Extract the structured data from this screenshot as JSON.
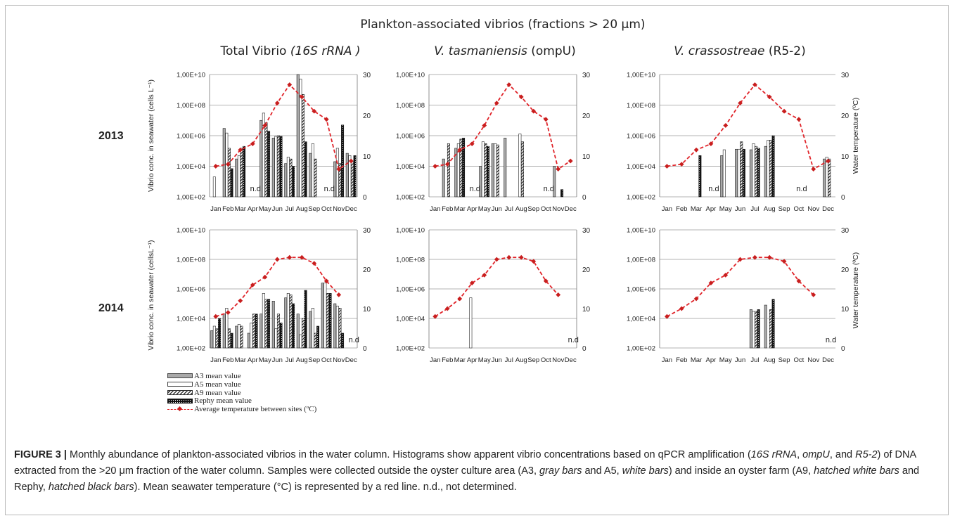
{
  "figure": {
    "supertitle": "Plankton-associated vibrios (fractions > 20 µm)",
    "column_titles": [
      {
        "plain": "Total Vibrio ",
        "italic": "(16S rRNA )"
      },
      {
        "plain": "",
        "italic": "V. tasmaniensis",
        "plain2": " (ompU)"
      },
      {
        "plain": "",
        "italic": "V. crassostreae",
        "plain2": " (R5-2)"
      }
    ],
    "row_labels": [
      "2013",
      "2014"
    ],
    "left_axis_label_2013": "Vibrio conc. in seawater (cells L⁻¹)",
    "left_axis_label_2014": "Vibrio conc. in seawater (cellsL⁻¹)",
    "right_axis_label": "Water temperature (ºC)"
  },
  "legend": {
    "a3": "A3 mean value",
    "a5": "A5 mean value",
    "a9": "A9 mean value",
    "rephy": "Rephy mean value",
    "temp": "Average temperature between sites (ºC)"
  },
  "colors": {
    "a3": "#a9a9a9",
    "a5": "#ffffff",
    "rephy": "#111111",
    "temperature": "#e0242a",
    "grid": "#9a9a9a"
  },
  "caption": {
    "label": "FIGURE 3 |",
    "p1": " Monthly abundance of plankton-associated vibrios in the water column. Histograms show apparent vibrio concentrations based on qPCR amplification (",
    "i1": "16S rRNA",
    "p2": ", ",
    "i2": "ompU",
    "p3": ", and ",
    "i3": "R5-2",
    "p4": ") of DNA extracted from the >20 μm fraction of the water column. Samples were collected outside the oyster culture area (A3, ",
    "i4": "gray bars",
    "p5": " and A5, ",
    "i5": "white bars",
    "p6": ") and inside an oyster farm (A9, ",
    "i6": "hatched white bars",
    "p7": " and Rephy, ",
    "i7": "hatched black bars",
    "p8": "). Mean seawater temperature (°C) is represented by a red line. n.d., not determined."
  },
  "chart_data": [
    {
      "type": "bar",
      "name": "Total Vibrio 2013",
      "categories": [
        "Jan",
        "Feb",
        "Mar",
        "Apr",
        "May",
        "Jun",
        "Jul",
        "Aug",
        "Sep",
        "Oct",
        "Nov",
        "Dec"
      ],
      "y_ticks": [
        "1,00E+02",
        "1,00E+04",
        "1,00E+06",
        "1,00E+08",
        "1,00E+10"
      ],
      "y2_ticks": [
        "0",
        "10",
        "20",
        "30"
      ],
      "log_scale": true,
      "ylim": [
        100,
        10000000000
      ],
      "y2lim": [
        0,
        30
      ],
      "series": [
        {
          "name": "A3 mean value",
          "values": [
            null,
            3000000,
            30000,
            null,
            10000000,
            700000,
            15000,
            10000000000,
            70000,
            null,
            20000,
            70000
          ]
        },
        {
          "name": "A5 mean value",
          "values": [
            2000,
            1500000,
            50000,
            null,
            30000000,
            900000,
            40000,
            5000000000,
            300000,
            null,
            150000,
            50000
          ]
        },
        {
          "name": "A9 mean value",
          "values": [
            null,
            150000,
            150000,
            null,
            7000000,
            1000000,
            30000,
            500000000,
            30000,
            null,
            15000,
            20000
          ]
        },
        {
          "name": "Rephy mean value",
          "values": [
            null,
            7000,
            200000,
            null,
            2000000,
            900000,
            10000,
            400000,
            null,
            null,
            5000000,
            50000
          ]
        }
      ],
      "temperature": [
        7.5,
        8,
        11.5,
        13,
        17.5,
        23,
        27.5,
        24.5,
        21,
        19,
        6.8,
        8.8
      ],
      "nd_labels": [
        {
          "month": "Apr",
          "text": "n.d"
        },
        {
          "month": "Oct",
          "text": "n.d"
        }
      ]
    },
    {
      "type": "bar",
      "name": "V. tasmaniensis 2013",
      "categories": [
        "Jan",
        "Feb",
        "Mar",
        "Apr",
        "May",
        "Jun",
        "Jul",
        "Aug",
        "Sep",
        "Oct",
        "Nov",
        "Dec"
      ],
      "y_ticks": [
        "1,00E+02",
        "1,00E+04",
        "1,00E+06",
        "1,00E+08",
        "1,00E+10"
      ],
      "y2_ticks": [
        "0",
        "10",
        "20",
        "30"
      ],
      "log_scale": true,
      "ylim": [
        100,
        10000000000
      ],
      "y2lim": [
        0,
        30
      ],
      "series": [
        {
          "name": "A3 mean value",
          "values": [
            null,
            30000,
            150000,
            null,
            10000,
            300000,
            700000,
            null,
            null,
            null,
            10000,
            null
          ]
        },
        {
          "name": "A5 mean value",
          "values": [
            null,
            null,
            300000,
            null,
            400000,
            300000,
            null,
            1300000,
            null,
            null,
            null,
            null
          ]
        },
        {
          "name": "A9 mean value",
          "values": [
            null,
            300000,
            600000,
            null,
            300000,
            250000,
            null,
            400000,
            null,
            null,
            null,
            null
          ]
        },
        {
          "name": "Rephy mean value",
          "values": [
            null,
            null,
            700000,
            null,
            200000,
            null,
            null,
            null,
            null,
            null,
            300,
            null
          ]
        }
      ],
      "temperature": [
        7.5,
        8,
        11.5,
        13,
        17.5,
        23,
        27.5,
        24.5,
        21,
        19,
        6.8,
        8.8
      ],
      "nd_labels": [
        {
          "month": "Apr",
          "text": "n.d"
        },
        {
          "month": "Oct",
          "text": "n.d"
        }
      ]
    },
    {
      "type": "bar",
      "name": "V. crassostreae 2013",
      "categories": [
        "Jan",
        "Feb",
        "Mar",
        "Apr",
        "May",
        "Jun",
        "Jul",
        "Aug",
        "Sep",
        "Oct",
        "Nov",
        "Dec"
      ],
      "y_ticks": [
        "1,00E+02",
        "1,00E+04",
        "1,00E+06",
        "1,00E+08",
        "1,00E+10"
      ],
      "y2_ticks": [
        "0",
        "10",
        "20",
        "30"
      ],
      "log_scale": true,
      "ylim": [
        100,
        10000000000
      ],
      "y2lim": [
        0,
        30
      ],
      "series": [
        {
          "name": "A3 mean value",
          "values": [
            null,
            null,
            null,
            null,
            50000,
            130000,
            120000,
            200000,
            null,
            null,
            null,
            30000
          ]
        },
        {
          "name": "A5 mean value",
          "values": [
            null,
            null,
            null,
            null,
            120000,
            130000,
            300000,
            500000,
            null,
            null,
            null,
            40000
          ]
        },
        {
          "name": "A9 mean value",
          "values": [
            null,
            null,
            null,
            null,
            null,
            400000,
            200000,
            500000,
            null,
            null,
            null,
            30000
          ]
        },
        {
          "name": "Rephy mean value",
          "values": [
            null,
            null,
            50000,
            null,
            null,
            130000,
            150000,
            1000000,
            null,
            null,
            null,
            null
          ]
        }
      ],
      "temperature": [
        7.5,
        8,
        11.5,
        13,
        17.5,
        23,
        27.5,
        24.5,
        21,
        19,
        6.8,
        8.8
      ],
      "nd_labels": [
        {
          "month": "Apr",
          "text": "n.d"
        },
        {
          "month": "Oct",
          "text": "n.d"
        }
      ]
    },
    {
      "type": "bar",
      "name": "Total Vibrio 2014",
      "categories": [
        "Jan",
        "Feb",
        "Mar",
        "Apr",
        "May",
        "Jun",
        "Jul",
        "Aug",
        "Sep",
        "Oct",
        "Nov",
        "Dec"
      ],
      "y_ticks": [
        "1,00E+02",
        "1,00E+04",
        "1,00E+06",
        "1,00E+08",
        "1,00E+10"
      ],
      "y2_ticks": [
        "0",
        "10",
        "20",
        "30"
      ],
      "log_scale": true,
      "ylim": [
        100,
        10000000000
      ],
      "y2lim": [
        0,
        30
      ],
      "series": [
        {
          "name": "A3 mean value",
          "values": [
            1500,
            20000,
            3000,
            1000,
            20000,
            150000,
            250000,
            20000,
            30000,
            2500000,
            100000,
            null
          ]
        },
        {
          "name": "A5 mean value",
          "values": [
            3000,
            50000,
            4000,
            5000,
            500000,
            2000,
            500000,
            800,
            50000,
            2500000,
            70000,
            null
          ]
        },
        {
          "name": "A9 mean value",
          "values": [
            2000,
            2000,
            3000,
            20000,
            200000,
            20000,
            400000,
            10000,
            1000,
            500000,
            50000,
            null
          ]
        },
        {
          "name": "Rephy mean value",
          "values": [
            10000,
            1000,
            null,
            20000,
            200000,
            5000,
            100000,
            800000,
            3000,
            500000,
            1000,
            null
          ]
        }
      ],
      "temperature": [
        8,
        9,
        12,
        16,
        18,
        22.5,
        23,
        23,
        21.5,
        17,
        13.5,
        null
      ],
      "nd_labels": [
        {
          "month": "Dec",
          "text": "n.d"
        }
      ]
    },
    {
      "type": "bar",
      "name": "V. tasmaniensis 2014",
      "categories": [
        "Jan",
        "Feb",
        "Mar",
        "Apr",
        "May",
        "Jun",
        "Jul",
        "Aug",
        "Sep",
        "Oct",
        "Nov",
        "Dec"
      ],
      "y_ticks": [
        "1,00E+02",
        "1,00E+04",
        "1,00E+06",
        "1,00E+08",
        "1,00E+10"
      ],
      "y2_ticks": [
        "0",
        "10",
        "20",
        "30"
      ],
      "log_scale": true,
      "ylim": [
        100,
        10000000000
      ],
      "y2lim": [
        0,
        30
      ],
      "series": [
        {
          "name": "A3 mean value",
          "values": [
            null,
            null,
            null,
            null,
            null,
            null,
            null,
            null,
            null,
            null,
            null,
            null
          ]
        },
        {
          "name": "A5 mean value",
          "values": [
            null,
            null,
            null,
            250000,
            null,
            null,
            null,
            null,
            null,
            null,
            null,
            null
          ]
        },
        {
          "name": "A9 mean value",
          "values": [
            null,
            null,
            null,
            null,
            null,
            null,
            null,
            null,
            null,
            null,
            null,
            null
          ]
        },
        {
          "name": "Rephy mean value",
          "values": [
            null,
            null,
            null,
            null,
            null,
            null,
            null,
            null,
            null,
            null,
            null,
            null
          ]
        }
      ],
      "temperature": [
        8,
        10,
        12.5,
        16.5,
        18.5,
        22.5,
        23,
        23,
        22,
        17,
        13.5,
        null
      ],
      "nd_labels": [
        {
          "month": "Dec",
          "text": "n.d"
        }
      ]
    },
    {
      "type": "bar",
      "name": "V. crassostreae 2014",
      "categories": [
        "Jan",
        "Feb",
        "Mar",
        "Apr",
        "May",
        "Jun",
        "Jul",
        "Aug",
        "Sep",
        "Oct",
        "Nov",
        "Dec"
      ],
      "y_ticks": [
        "1,00E+02",
        "1,00E+04",
        "1,00E+06",
        "1,00E+08",
        "1,00E+10"
      ],
      "y2_ticks": [
        "0",
        "10",
        "20",
        "30"
      ],
      "log_scale": true,
      "ylim": [
        100,
        10000000000
      ],
      "y2lim": [
        0,
        30
      ],
      "series": [
        {
          "name": "A3 mean value",
          "values": [
            null,
            null,
            null,
            null,
            null,
            null,
            40000,
            80000,
            null,
            null,
            null,
            null
          ]
        },
        {
          "name": "A5 mean value",
          "values": [
            null,
            null,
            null,
            null,
            null,
            null,
            30000,
            null,
            null,
            null,
            null,
            null
          ]
        },
        {
          "name": "A9 mean value",
          "values": [
            null,
            null,
            null,
            null,
            null,
            null,
            30000,
            40000,
            null,
            null,
            null,
            null
          ]
        },
        {
          "name": "Rephy mean value",
          "values": [
            null,
            null,
            null,
            null,
            null,
            null,
            40000,
            200000,
            null,
            null,
            null,
            null
          ]
        }
      ],
      "temperature": [
        8,
        10,
        12.5,
        16.5,
        18.5,
        22.5,
        23,
        23,
        22,
        17,
        13.5,
        null
      ],
      "nd_labels": [
        {
          "month": "Dec",
          "text": "n.d"
        }
      ]
    }
  ]
}
